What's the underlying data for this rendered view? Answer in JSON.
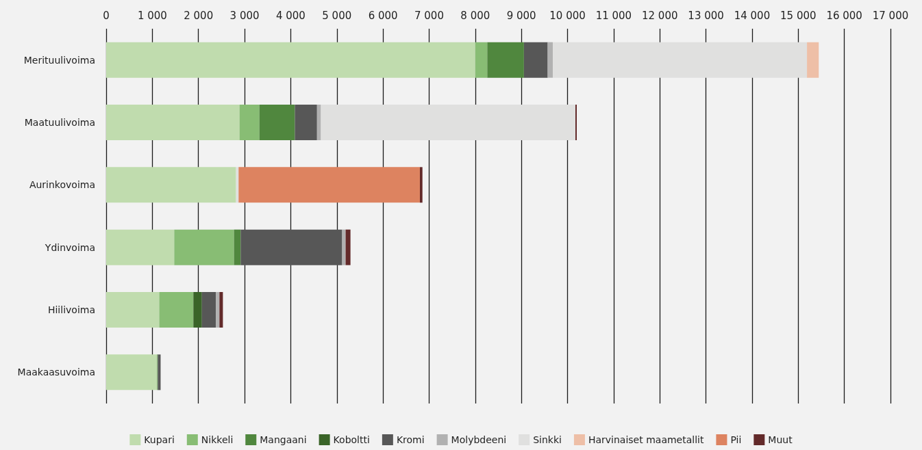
{
  "chart_data": {
    "type": "bar",
    "orientation": "horizontal",
    "stacked": true,
    "grid": "x",
    "legend": "bottom",
    "categories": [
      "Merituulivoima",
      "Maatuulivoima",
      "Aurinkovoima",
      "Ydinvoima",
      "Hiilivoima",
      "Maakaasuvoima"
    ],
    "xlim": [
      0,
      17000
    ],
    "xticks": [
      0,
      {
        "value": 1000,
        "label": "1 000"
      },
      {
        "value": 2000,
        "label": "2 000"
      },
      {
        "value": 3000,
        "label": "3 000"
      },
      {
        "value": 4000,
        "label": "4 000"
      },
      {
        "value": 5000,
        "label": "5 000"
      },
      {
        "value": 6000,
        "label": "6 000"
      },
      {
        "value": 7000,
        "label": "7 000"
      },
      {
        "value": 8000,
        "label": "8 000"
      },
      {
        "value": 9000,
        "label": "9 000"
      },
      {
        "value": 10000,
        "label": "10 000"
      },
      {
        "value": 11000,
        "label": "11 000"
      },
      {
        "value": 12000,
        "label": "12 000"
      },
      {
        "value": 13000,
        "label": "13 000"
      },
      {
        "value": 14000,
        "label": "14 000"
      },
      {
        "value": 15000,
        "label": "15 000"
      },
      {
        "value": 16000,
        "label": "16 000"
      },
      {
        "value": 17000,
        "label": "17 000"
      }
    ],
    "series": [
      {
        "name": "Kupari",
        "color": "#c0dcae",
        "values": [
          8000,
          2890,
          2815,
          1475,
          1150,
          1105
        ]
      },
      {
        "name": "Nikkeli",
        "color": "#88bd74",
        "values": [
          260,
          430,
          0,
          1295,
          740,
          0
        ]
      },
      {
        "name": "Mangaani",
        "color": "#50873e",
        "values": [
          795,
          770,
          0,
          145,
          0,
          15
        ]
      },
      {
        "name": "Koboltti",
        "color": "#3a6428",
        "values": [
          0,
          0,
          0,
          0,
          185,
          0
        ]
      },
      {
        "name": "Kromi",
        "color": "#575757",
        "values": [
          515,
          480,
          0,
          2200,
          305,
          60
        ]
      },
      {
        "name": "Molybdeeni",
        "color": "#b1b1b1",
        "values": [
          110,
          85,
          0,
          75,
          75,
          0
        ]
      },
      {
        "name": "Sinkki",
        "color": "#e0e0df",
        "values": [
          5510,
          5515,
          55,
          0,
          0,
          0
        ]
      },
      {
        "name": "Harvinaiset maametallit",
        "color": "#eebfa7",
        "values": [
          255,
          0,
          0,
          0,
          0,
          0
        ]
      },
      {
        "name": "Pii",
        "color": "#dd8360",
        "values": [
          0,
          0,
          3930,
          0,
          0,
          0
        ]
      },
      {
        "name": "Muut",
        "color": "#632a2a",
        "values": [
          0,
          30,
          55,
          105,
          75,
          0
        ]
      }
    ]
  }
}
